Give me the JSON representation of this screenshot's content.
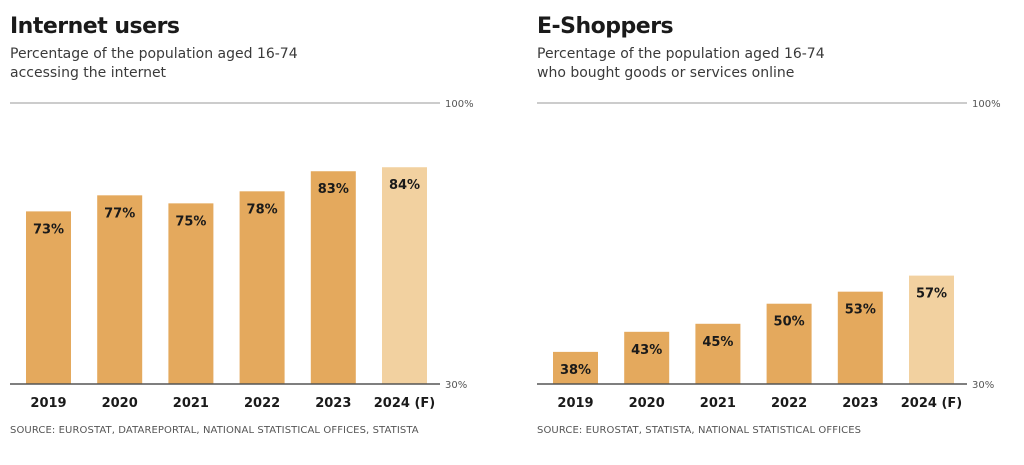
{
  "colors": {
    "bar": "#e4a95d",
    "bar_forecast": "#f2d1a0",
    "axis": "#555555",
    "top_line": "#999999"
  },
  "chart_data": [
    {
      "type": "bar",
      "title": "Internet users",
      "subtitle_line1": "Percentage of the population aged 16-74",
      "subtitle_line2": "accessing the internet",
      "categories": [
        "2019",
        "2020",
        "2021",
        "2022",
        "2023",
        "2024 (F)"
      ],
      "values": [
        73,
        77,
        75,
        78,
        83,
        84
      ],
      "value_labels": [
        "73%",
        "77%",
        "75%",
        "78%",
        "83%",
        "84%"
      ],
      "forecast": [
        false,
        false,
        false,
        false,
        false,
        true
      ],
      "ylim": [
        30,
        100
      ],
      "ytick_labels": [
        "30%",
        "100%"
      ],
      "xlabel": "",
      "ylabel": "",
      "grid": false,
      "source": "SOURCE: EUROSTAT, DATAREPORTAL, NATIONAL STATISTICAL OFFICES, STATISTA"
    },
    {
      "type": "bar",
      "title": "E-Shoppers",
      "subtitle_line1": "Percentage of the population aged 16-74",
      "subtitle_line2": "who bought goods or services online",
      "categories": [
        "2019",
        "2020",
        "2021",
        "2022",
        "2023",
        "2024 (F)"
      ],
      "values": [
        38,
        43,
        45,
        50,
        53,
        57
      ],
      "value_labels": [
        "38%",
        "43%",
        "45%",
        "50%",
        "53%",
        "57%"
      ],
      "forecast": [
        false,
        false,
        false,
        false,
        false,
        true
      ],
      "ylim": [
        30,
        100
      ],
      "ytick_labels": [
        "30%",
        "100%"
      ],
      "xlabel": "",
      "ylabel": "",
      "grid": false,
      "source": "SOURCE: EUROSTAT, STATISTA, NATIONAL STATISTICAL OFFICES"
    }
  ]
}
